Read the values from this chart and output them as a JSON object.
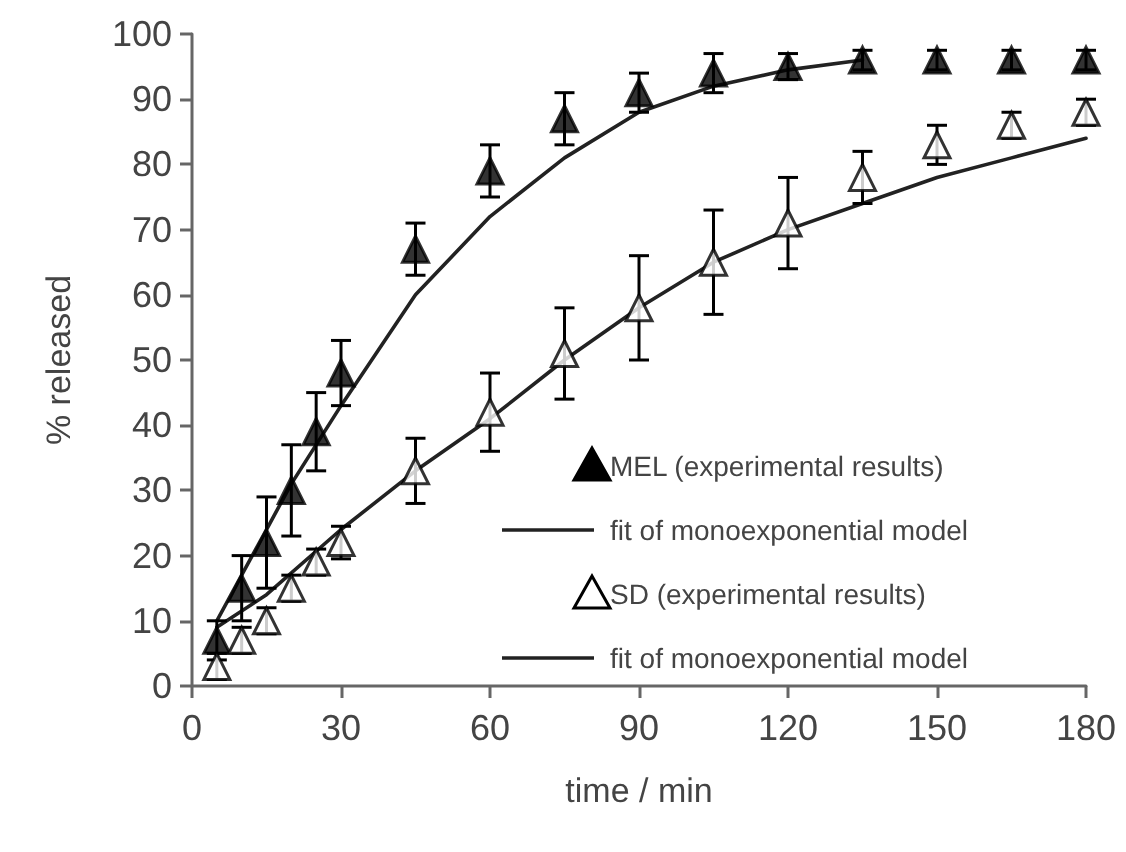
{
  "chart_data": {
    "type": "scatter",
    "xlabel": "time / min",
    "ylabel": "% released",
    "xlim": [
      0,
      180
    ],
    "xticks": [
      0,
      30,
      60,
      90,
      120,
      150,
      180
    ],
    "ylim": [
      0,
      100
    ],
    "yticks": [
      0,
      10,
      20,
      30,
      40,
      50,
      60,
      70,
      80,
      90,
      100
    ],
    "grid": false,
    "legend": "bottom right",
    "marker": "triangle",
    "series": [
      {
        "name": "MEL (experimental results)",
        "color": "#000000",
        "x": [
          5,
          10,
          15,
          20,
          25,
          30,
          45,
          60,
          75,
          90,
          105,
          120,
          135,
          150,
          165,
          180
        ],
        "values": [
          7,
          15,
          22,
          30,
          39,
          48,
          67,
          79,
          87,
          91,
          94,
          95,
          96,
          96,
          96,
          96
        ],
        "errors": [
          3,
          5,
          7,
          7,
          6,
          5,
          4,
          4,
          4,
          3,
          3,
          2,
          1.5,
          1.5,
          1.5,
          1.5
        ]
      },
      {
        "name": "fit of monoexponential model",
        "type": "line",
        "color": "#222222",
        "marker": "none",
        "x": [
          5,
          10,
          15,
          20,
          30,
          45,
          60,
          75,
          90,
          105,
          120,
          135
        ],
        "values": [
          10,
          17,
          24,
          31,
          43,
          60,
          72,
          81,
          88,
          92,
          94.5,
          96
        ]
      },
      {
        "name": "SD (experimental results)",
        "color": "#ffffff",
        "x": [
          5,
          10,
          15,
          20,
          25,
          30,
          45,
          60,
          75,
          90,
          105,
          120,
          135,
          150,
          165,
          180
        ],
        "values": [
          3,
          7,
          10,
          15,
          19,
          22,
          33,
          42,
          51,
          58,
          65,
          71,
          78,
          83,
          86,
          88
        ],
        "errors": [
          2,
          2,
          2,
          2,
          2,
          2.5,
          5,
          6,
          7,
          8,
          8,
          7,
          4,
          3,
          2,
          2
        ]
      },
      {
        "name": "fit of monoexponential model",
        "type": "line",
        "color": "#222222",
        "marker": "none",
        "x": [
          5,
          15,
          30,
          45,
          60,
          75,
          90,
          105,
          120,
          135,
          150,
          165,
          180
        ],
        "values": [
          9,
          14,
          24,
          33,
          41,
          50,
          58,
          65,
          70,
          74,
          78,
          81,
          84
        ]
      }
    ]
  }
}
